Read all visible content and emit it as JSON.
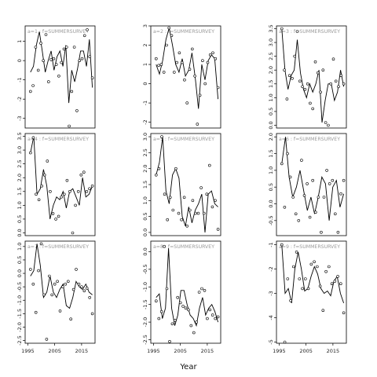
{
  "chart_data": {
    "type": "line",
    "xlabel": "Year",
    "x_ticks": [
      1995,
      2005,
      2015
    ],
    "xlim": [
      1994,
      2020
    ],
    "x": [
      1996,
      1997,
      1998,
      1999,
      2000,
      2001,
      2002,
      2003,
      2004,
      2005,
      2006,
      2007,
      2008,
      2009,
      2010,
      2011,
      2012,
      2013,
      2014,
      2015,
      2016,
      2017,
      2018,
      2019
    ],
    "panels": [
      {
        "label": "a=1 :  f=SUMMERSURVEY",
        "ylim": [
          -3.5,
          1.8
        ],
        "y_ticks": [
          -3,
          -2,
          -1,
          0,
          1
        ],
        "points": [
          -1.6,
          -1.3,
          0.7,
          -0.5,
          0.9,
          0.0,
          1.35,
          -1.1,
          0.05,
          0.1,
          -0.2,
          -0.8,
          -0.1,
          0.6,
          0.7,
          -3.4,
          -1.6,
          0.7,
          -2.6,
          0.0,
          0.1,
          1.3,
          1.6,
          0.2,
          -0.9
        ],
        "line": [
          -0.6,
          -0.3,
          0.8,
          1.5,
          0.5,
          -0.6,
          0.0,
          0.5,
          -0.5,
          0.2,
          0.5,
          -0.3,
          0.8,
          -2.2,
          -0.5,
          -1.1,
          -0.4,
          0.5,
          0.5,
          -0.3,
          1.1,
          -1.4
        ]
      },
      {
        "label": "a=2 :  f=SUMMERSURVEY",
        "ylim": [
          -2.3,
          3.0
        ],
        "y_ticks": [
          -2,
          -1,
          0,
          1,
          2,
          3
        ],
        "points": [
          1.3,
          0.95,
          1.0,
          0.6,
          2.0,
          2.9,
          2.5,
          0.6,
          1.1,
          1.6,
          1.1,
          0.2,
          -1.0,
          0.75,
          1.8,
          0.4,
          -2.1,
          -0.6,
          1.2,
          0.0,
          1.1,
          1.5,
          1.6,
          1.3,
          -0.2
        ],
        "line": [
          1.0,
          0.5,
          1.2,
          2.3,
          2.9,
          2.0,
          1.0,
          0.6,
          1.3,
          0.4,
          0.7,
          1.6,
          0.3,
          -1.3,
          1.0,
          0.2,
          1.2,
          1.5,
          1.3,
          -0.8
        ]
      },
      {
        "label": "a=3 :  f=SUMMERSURVEY",
        "ylim": [
          -0.1,
          3.6
        ],
        "y_ticks": [
          0.0,
          0.5,
          1.0,
          1.5,
          2.0,
          2.5,
          3.0,
          3.5
        ],
        "points": [
          3.5,
          2.0,
          0.95,
          1.8,
          1.7,
          2.5,
          3.4,
          1.6,
          1.4,
          1.3,
          1.5,
          0.8,
          0.6,
          2.3,
          1.9,
          1.2,
          2.0,
          0.1,
          0.0,
          1.5,
          2.4,
          1.6,
          1.4,
          1.8,
          1.5
        ],
        "line": [
          3.5,
          2.0,
          1.3,
          1.8,
          2.0,
          3.1,
          1.9,
          1.3,
          1.0,
          1.5,
          1.2,
          1.5,
          2.0,
          0.1,
          0.9,
          1.5,
          1.5,
          0.9,
          1.2,
          2.0,
          1.4
        ]
      },
      {
        "label": "a=4 :  f=SUMMERSURVEY",
        "ylim": [
          -0.1,
          3.6
        ],
        "y_ticks": [
          0.0,
          0.5,
          1.0,
          1.5,
          2.0,
          2.5,
          3.0,
          3.5
        ],
        "points": [
          2.9,
          3.45,
          1.4,
          1.2,
          1.7,
          2.1,
          2.6,
          1.5,
          0.7,
          0.5,
          0.6,
          1.3,
          1.4,
          1.9,
          1.5,
          0.0,
          1.0,
          1.5,
          2.1,
          2.2,
          1.5,
          1.6,
          1.7
        ],
        "line": [
          2.9,
          3.5,
          1.4,
          1.6,
          2.3,
          1.7,
          0.5,
          1.0,
          1.3,
          1.2,
          1.5,
          0.9,
          1.5,
          1.6,
          1.3,
          1.0,
          2.0,
          1.3,
          1.4,
          1.7
        ]
      },
      {
        "label": "a=5 :  f=SUMMERSURVEY",
        "ylim": [
          -0.1,
          3.1
        ],
        "y_ticks": [
          0.0,
          0.5,
          1.0,
          1.5,
          2.0,
          2.5,
          3.0
        ],
        "points": [
          1.8,
          2.0,
          3.0,
          1.2,
          0.4,
          1.1,
          0.7,
          2.0,
          0.6,
          0.4,
          1.1,
          0.2,
          0.7,
          1.0,
          0.6,
          0.6,
          1.4,
          0.6,
          1.2,
          2.1,
          0.8,
          1.0,
          0.1
        ],
        "line": [
          1.8,
          2.2,
          3.0,
          1.3,
          0.9,
          1.8,
          2.0,
          1.7,
          0.5,
          0.2,
          0.8,
          0.3,
          0.7,
          0.9,
          1.2,
          0.0,
          1.2,
          1.3,
          0.9,
          0.8
        ]
      },
      {
        "label": "a=6 :  f=SUMMERSURVEY",
        "ylim": [
          -0.95,
          2.1
        ],
        "y_ticks": [
          -0.5,
          0.0,
          0.5,
          1.0,
          1.5,
          2.0
        ],
        "points": [
          1.2,
          -0.1,
          1.5,
          0.8,
          0.2,
          -0.3,
          -0.5,
          1.3,
          0.25,
          0.6,
          -0.4,
          0.7,
          -0.25,
          0.2,
          -0.85,
          0.2,
          1.0,
          0.6,
          0.7,
          -0.3,
          -0.85,
          0.3,
          0.7
        ],
        "line": [
          1.2,
          2.0,
          0.8,
          0.2,
          0.5,
          1.0,
          0.4,
          -0.2,
          0.2,
          -0.3,
          0.2,
          0.8,
          0.6,
          -0.5,
          0.5,
          0.7,
          -0.1,
          0.3
        ]
      },
      {
        "label": "a=7 :  f=SUMMERSURVEY",
        "ylim": [
          -2.6,
          1.2
        ],
        "y_ticks": [
          -2.5,
          -2.0,
          -1.5,
          -1.0,
          -0.5,
          0.0,
          0.5,
          1.0
        ],
        "points": [
          0.15,
          -0.4,
          -1.45,
          0.1,
          1.1,
          -0.8,
          -2.45,
          -0.1,
          -0.8,
          -0.4,
          -0.3,
          -1.4,
          -0.5,
          -0.4,
          -0.3,
          -1.7,
          -0.6,
          0.15,
          -0.4,
          -0.5,
          -0.65,
          -0.55,
          -0.9,
          -1.5
        ],
        "line": [
          -0.1,
          0.1,
          1.1,
          0.3,
          -0.9,
          -0.7,
          -0.1,
          -0.7,
          -0.9,
          -0.6,
          -0.4,
          -1.2,
          -1.3,
          -0.9,
          -0.3,
          -0.5,
          -0.6,
          -0.4,
          -0.7,
          -0.8
        ]
      },
      {
        "label": "a=8 :  f=SUMMERSURVEY",
        "ylim": [
          -2.6,
          0.3
        ],
        "y_ticks": [
          -2.5,
          -2.0,
          -1.5,
          -1.0,
          -0.5,
          0.0
        ],
        "points": [
          -1.4,
          -1.9,
          -1.7,
          0.15,
          -1.05,
          -2.55,
          -2.05,
          -1.95,
          -1.3,
          -1.45,
          -1.55,
          -1.6,
          -1.65,
          -2.1,
          -2.3,
          -2.0,
          -1.15,
          -1.05,
          -1.1,
          -1.9,
          -1.65,
          -1.8,
          -1.9,
          -1.85
        ],
        "line": [
          -1.3,
          -1.2,
          -1.9,
          -1.6,
          0.1,
          -1.6,
          -2.1,
          -1.8,
          -1.1,
          -1.1,
          -1.5,
          -1.8,
          -1.9,
          -2.1,
          -1.6,
          -1.3,
          -1.8,
          -1.6,
          -1.5,
          -1.7,
          -2.0
        ]
      },
      {
        "label": "a=9 :  f=SUMMERSURVEY",
        "ylim": [
          -5.05,
          -0.85
        ],
        "y_ticks": [
          -5,
          -4,
          -3,
          -2,
          -1
        ],
        "points": [
          -1.0,
          -5.0,
          -2.4,
          -3.3,
          -1.9,
          -1.3,
          -2.4,
          -2.8,
          -2.4,
          -2.8,
          -1.8,
          -1.7,
          -1.9,
          -2.7,
          -3.7,
          -2.1,
          -1.9,
          -2.6,
          -2.5,
          -2.3,
          -2.6,
          -3.8
        ],
        "line": [
          -1.0,
          -3.0,
          -2.8,
          -3.4,
          -2.0,
          -1.3,
          -2.0,
          -2.9,
          -2.8,
          -2.3,
          -1.9,
          -2.2,
          -2.8,
          -3.0,
          -2.9,
          -3.1,
          -2.5,
          -2.3,
          -3.0,
          -3.4
        ]
      }
    ]
  }
}
